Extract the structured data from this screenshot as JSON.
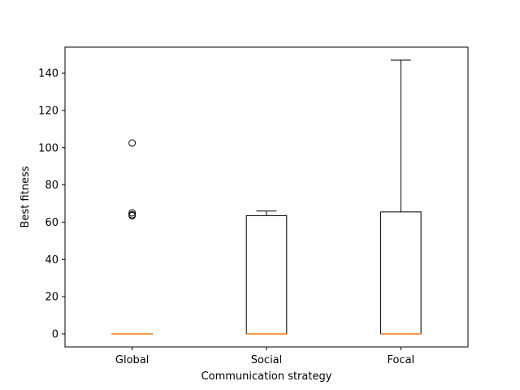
{
  "chart_data": {
    "type": "box",
    "title": "",
    "xlabel": "Communication strategy",
    "ylabel": "Best fitness",
    "ylim": [
      -7,
      154
    ],
    "yticks": [
      0,
      20,
      40,
      60,
      80,
      100,
      120,
      140
    ],
    "categories": [
      "Global",
      "Social",
      "Focal"
    ],
    "boxes": [
      {
        "category": "Global",
        "whisker_low": 0,
        "q1": 0,
        "median": 0,
        "q3": 0,
        "whisker_high": 0,
        "outliers": [
          102.5,
          65,
          64,
          63.5
        ]
      },
      {
        "category": "Social",
        "whisker_low": 0,
        "q1": 0,
        "median": 0,
        "q3": 63.5,
        "whisker_high": 66,
        "outliers": []
      },
      {
        "category": "Focal",
        "whisker_low": 0,
        "q1": 0,
        "median": 0,
        "q3": 65.5,
        "whisker_high": 147,
        "outliers": []
      }
    ],
    "grid": false,
    "colors": {
      "box": "#000000",
      "median": "#ff7f0e",
      "outlier": "#000000"
    }
  }
}
